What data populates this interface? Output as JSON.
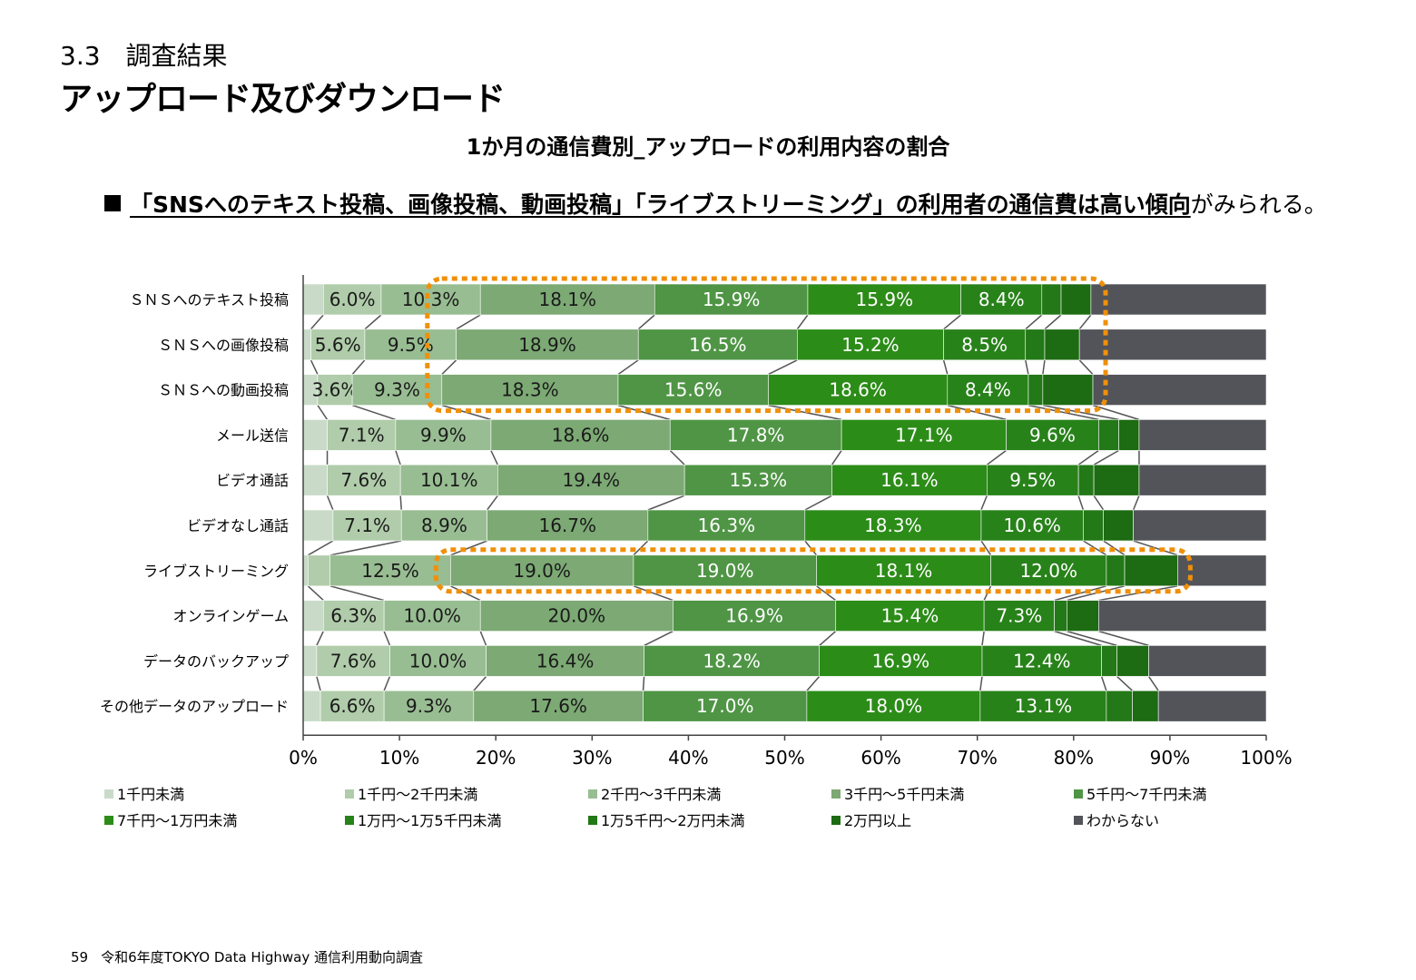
{
  "header": {
    "section": "3.3　調査結果",
    "title": "アップロード及びダウンロード"
  },
  "headline": {
    "marker": "■",
    "highlight": "「SNSへのテキスト投稿、画像投稿、動画投稿」「ライブストリーミング」の利用者の通信費は高い傾向",
    "rest": "がみられる。"
  },
  "footer": {
    "page": "59",
    "source": "令和6年度TOKYO Data Highway 通信利用動向調査"
  },
  "chart_data": {
    "type": "bar",
    "orientation": "horizontal-stacked-100",
    "title": "1か月の通信費別_アップロードの利用内容の割合",
    "xlim": [
      0,
      100
    ],
    "x_ticks": [
      "0%",
      "10%",
      "20%",
      "30%",
      "40%",
      "50%",
      "60%",
      "70%",
      "80%",
      "90%",
      "100%"
    ],
    "categories": [
      "ＳＮＳへのテキスト投稿",
      "ＳＮＳへの画像投稿",
      "ＳＮＳへの動画投稿",
      "メール送信",
      "ビデオ通話",
      "ビデオなし通話",
      "ライブストリーミング",
      "オンラインゲーム",
      "データのバックアップ",
      "その他データのアップロード"
    ],
    "series": [
      {
        "name": "1千円未満",
        "color": "#c9dbc8",
        "values": [
          2.1,
          0.8,
          1.5,
          2.5,
          2.5,
          3.1,
          0.5,
          2.1,
          1.4,
          1.8
        ]
      },
      {
        "name": "1千円～2千円未満",
        "color": "#b0ccaa",
        "values": [
          6.0,
          5.6,
          3.6,
          7.1,
          7.6,
          7.1,
          2.3,
          6.3,
          7.6,
          6.6
        ]
      },
      {
        "name": "2千円～3千円未満",
        "color": "#98bd92",
        "values": [
          10.3,
          9.5,
          9.3,
          9.9,
          10.1,
          8.9,
          12.5,
          10.0,
          10.0,
          9.3
        ]
      },
      {
        "name": "3千円～5千円未満",
        "color": "#7ca974",
        "values": [
          18.1,
          18.9,
          18.3,
          18.6,
          19.4,
          16.7,
          19.0,
          20.0,
          16.4,
          17.6
        ]
      },
      {
        "name": "5千円～7千円未満",
        "color": "#4f9545",
        "values": [
          15.9,
          16.5,
          15.6,
          17.8,
          15.3,
          16.3,
          19.0,
          16.9,
          18.2,
          17.0
        ]
      },
      {
        "name": "7千円～1万円未満",
        "color": "#2c8c18",
        "values": [
          15.9,
          15.2,
          18.6,
          17.1,
          16.1,
          18.3,
          18.1,
          15.4,
          16.9,
          18.0
        ]
      },
      {
        "name": "1万円～1万5千円未満",
        "color": "#28821a",
        "values": [
          8.4,
          8.5,
          8.4,
          9.6,
          9.5,
          10.6,
          12.0,
          7.3,
          12.4,
          13.1
        ]
      },
      {
        "name": "1万5千円～2万円未満",
        "color": "#237817",
        "values": [
          2.0,
          2.0,
          1.5,
          2.1,
          1.6,
          2.1,
          1.9,
          1.3,
          1.6,
          2.7
        ]
      },
      {
        "name": "2万円以上",
        "color": "#1d6b12",
        "values": [
          3.1,
          3.6,
          5.2,
          2.1,
          4.7,
          3.1,
          5.5,
          3.3,
          3.3,
          2.7
        ]
      },
      {
        "name": "わからない",
        "color": "#525459",
        "values": [
          18.2,
          19.4,
          18.0,
          13.2,
          13.2,
          13.8,
          9.2,
          17.4,
          12.2,
          11.2
        ]
      }
    ],
    "label_threshold": 3.5,
    "highlight_groups": [
      [
        0,
        1,
        2
      ],
      [
        6
      ]
    ],
    "highlight_color": "#f0900a",
    "legend_position": "bottom"
  }
}
